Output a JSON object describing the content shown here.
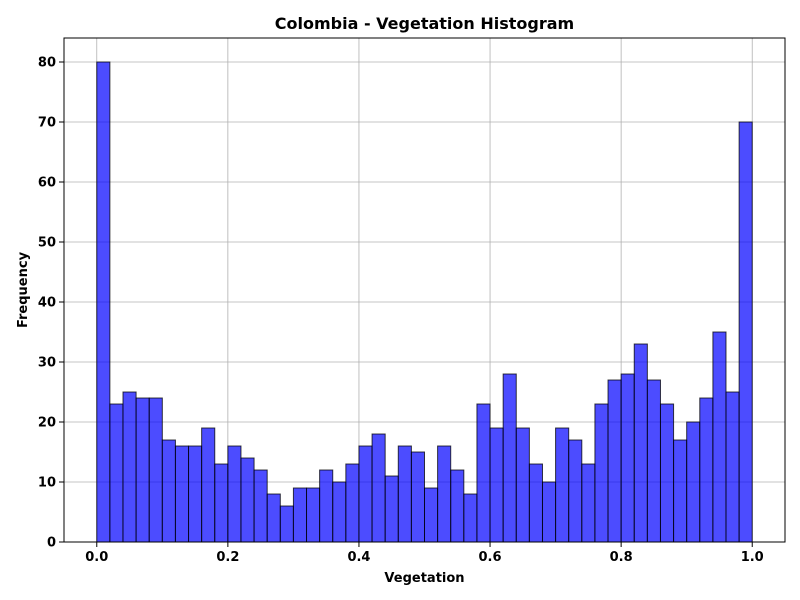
{
  "chart_data": {
    "type": "bar",
    "title": "Colombia - Vegetation Histogram",
    "xlabel": "Vegetation",
    "ylabel": "Frequency",
    "xlim": [
      -0.05,
      1.05
    ],
    "ylim": [
      0,
      84
    ],
    "grid": true,
    "bar_color": "#0000ff",
    "bin_width": 0.02,
    "bin_starts": [
      0.0,
      0.02,
      0.04,
      0.06,
      0.08,
      0.1,
      0.12,
      0.14,
      0.16,
      0.18,
      0.2,
      0.22,
      0.24,
      0.26,
      0.28,
      0.3,
      0.32,
      0.34,
      0.36,
      0.38,
      0.4,
      0.42,
      0.44,
      0.46,
      0.48,
      0.5,
      0.52,
      0.54,
      0.56,
      0.58,
      0.6,
      0.62,
      0.64,
      0.66,
      0.68,
      0.7,
      0.72,
      0.74,
      0.76,
      0.78,
      0.8,
      0.82,
      0.84,
      0.86,
      0.88,
      0.9,
      0.92,
      0.94,
      0.96,
      0.98
    ],
    "values": [
      80,
      23,
      25,
      24,
      24,
      17,
      16,
      16,
      19,
      13,
      16,
      14,
      12,
      8,
      6,
      9,
      9,
      12,
      10,
      13,
      16,
      18,
      11,
      16,
      15,
      9,
      16,
      12,
      8,
      23,
      19,
      28,
      19,
      13,
      10,
      19,
      17,
      13,
      23,
      27,
      28,
      33,
      27,
      23,
      17,
      20,
      24,
      35,
      25,
      70
    ],
    "x_ticks": [
      0.0,
      0.2,
      0.4,
      0.6,
      0.8,
      1.0
    ],
    "x_tick_labels": [
      "0.0",
      "0.2",
      "0.4",
      "0.6",
      "0.8",
      "1.0"
    ],
    "y_ticks": [
      0,
      10,
      20,
      30,
      40,
      50,
      60,
      70,
      80
    ],
    "y_tick_labels": [
      "0",
      "10",
      "20",
      "30",
      "40",
      "50",
      "60",
      "70",
      "80"
    ]
  }
}
